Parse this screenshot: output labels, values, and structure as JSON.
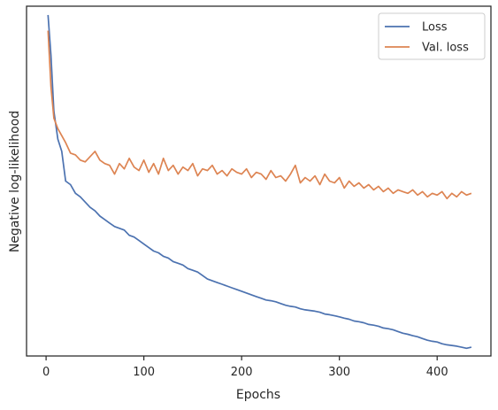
{
  "chart_data": {
    "type": "line",
    "title": "",
    "xlabel": "Epochs",
    "ylabel": "Negative log-likelihood",
    "xlim": [
      -20,
      455
    ],
    "ylim": [
      0,
      1
    ],
    "xticks": [
      0,
      100,
      200,
      300,
      400
    ],
    "yticks": [],
    "grid": false,
    "legend": "top-right",
    "series": [
      {
        "name": "Loss",
        "color": "#4c72b0",
        "x": [
          2,
          5,
          8,
          12,
          16,
          20,
          25,
          30,
          35,
          40,
          45,
          50,
          55,
          60,
          65,
          70,
          75,
          80,
          85,
          90,
          95,
          100,
          105,
          110,
          115,
          120,
          125,
          130,
          135,
          140,
          145,
          150,
          155,
          160,
          165,
          170,
          175,
          180,
          185,
          190,
          195,
          200,
          205,
          210,
          215,
          220,
          225,
          230,
          235,
          240,
          245,
          250,
          255,
          260,
          265,
          270,
          275,
          280,
          285,
          290,
          295,
          300,
          305,
          310,
          315,
          320,
          325,
          330,
          335,
          340,
          345,
          350,
          355,
          360,
          365,
          370,
          375,
          380,
          385,
          390,
          395,
          400,
          405,
          410,
          415,
          420,
          425,
          430,
          435
        ],
        "y": [
          0.975,
          0.86,
          0.7,
          0.62,
          0.585,
          0.5,
          0.49,
          0.465,
          0.455,
          0.44,
          0.425,
          0.415,
          0.4,
          0.39,
          0.38,
          0.37,
          0.365,
          0.36,
          0.345,
          0.34,
          0.33,
          0.32,
          0.31,
          0.3,
          0.295,
          0.285,
          0.28,
          0.27,
          0.265,
          0.26,
          0.25,
          0.245,
          0.24,
          0.23,
          0.22,
          0.215,
          0.21,
          0.205,
          0.2,
          0.195,
          0.19,
          0.185,
          0.18,
          0.175,
          0.17,
          0.165,
          0.16,
          0.158,
          0.155,
          0.15,
          0.145,
          0.142,
          0.14,
          0.135,
          0.132,
          0.13,
          0.128,
          0.125,
          0.12,
          0.118,
          0.115,
          0.112,
          0.108,
          0.105,
          0.1,
          0.098,
          0.095,
          0.09,
          0.088,
          0.085,
          0.08,
          0.078,
          0.075,
          0.07,
          0.065,
          0.062,
          0.058,
          0.055,
          0.05,
          0.045,
          0.042,
          0.04,
          0.035,
          0.032,
          0.03,
          0.028,
          0.025,
          0.022,
          0.025
        ]
      },
      {
        "name": "Val. loss",
        "color": "#dd8452",
        "x": [
          2,
          5,
          8,
          12,
          16,
          20,
          25,
          30,
          35,
          40,
          45,
          50,
          55,
          60,
          65,
          70,
          75,
          80,
          85,
          90,
          95,
          100,
          105,
          110,
          115,
          120,
          125,
          130,
          135,
          140,
          145,
          150,
          155,
          160,
          165,
          170,
          175,
          180,
          185,
          190,
          195,
          200,
          205,
          210,
          215,
          220,
          225,
          230,
          235,
          240,
          245,
          250,
          255,
          260,
          265,
          270,
          275,
          280,
          285,
          290,
          295,
          300,
          305,
          310,
          315,
          320,
          325,
          330,
          335,
          340,
          345,
          350,
          355,
          360,
          365,
          370,
          375,
          380,
          385,
          390,
          395,
          400,
          405,
          410,
          415,
          420,
          425,
          430,
          435
        ],
        "y": [
          0.93,
          0.77,
          0.68,
          0.65,
          0.63,
          0.61,
          0.58,
          0.575,
          0.56,
          0.555,
          0.57,
          0.585,
          0.56,
          0.55,
          0.545,
          0.52,
          0.55,
          0.535,
          0.565,
          0.54,
          0.53,
          0.56,
          0.525,
          0.55,
          0.52,
          0.565,
          0.53,
          0.545,
          0.52,
          0.54,
          0.53,
          0.55,
          0.515,
          0.535,
          0.53,
          0.545,
          0.52,
          0.53,
          0.515,
          0.535,
          0.525,
          0.52,
          0.535,
          0.51,
          0.525,
          0.52,
          0.505,
          0.53,
          0.51,
          0.515,
          0.5,
          0.52,
          0.545,
          0.495,
          0.51,
          0.5,
          0.515,
          0.49,
          0.52,
          0.5,
          0.495,
          0.51,
          0.48,
          0.5,
          0.485,
          0.495,
          0.48,
          0.49,
          0.475,
          0.485,
          0.47,
          0.48,
          0.465,
          0.475,
          0.47,
          0.465,
          0.475,
          0.46,
          0.47,
          0.455,
          0.465,
          0.46,
          0.47,
          0.45,
          0.465,
          0.455,
          0.47,
          0.46,
          0.465
        ]
      }
    ]
  }
}
